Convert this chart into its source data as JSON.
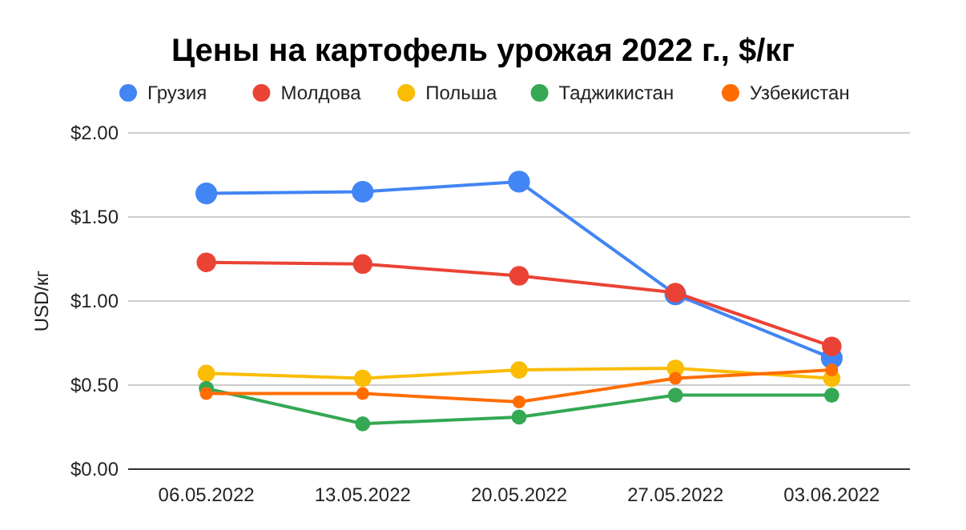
{
  "chart_data": {
    "type": "line",
    "title": "Цены на картофель урожая 2022 г., $/кг",
    "ylabel": "USD/кг",
    "categories": [
      "06.05.2022",
      "13.05.2022",
      "20.05.2022",
      "27.05.2022",
      "03.06.2022"
    ],
    "series": [
      {
        "name": "Грузия",
        "color": "#4285f4",
        "values": [
          1.64,
          1.65,
          1.71,
          1.04,
          0.66
        ]
      },
      {
        "name": "Молдова",
        "color": "#ea4335",
        "values": [
          1.23,
          1.22,
          1.15,
          1.05,
          0.73
        ]
      },
      {
        "name": "Польша",
        "color": "#fbbc04",
        "values": [
          0.57,
          0.54,
          0.59,
          0.6,
          0.54
        ]
      },
      {
        "name": "Таджикистан",
        "color": "#34a853",
        "values": [
          0.48,
          0.27,
          0.31,
          0.44,
          0.44
        ]
      },
      {
        "name": "Узбекистан",
        "color": "#ff6d01",
        "values": [
          0.45,
          0.45,
          0.4,
          0.54,
          0.59
        ]
      }
    ],
    "ylim": [
      0,
      2
    ],
    "yticks": [
      {
        "value": 0,
        "label": "$0.00"
      },
      {
        "value": 0.5,
        "label": "$0.50"
      },
      {
        "value": 1,
        "label": "$1.00"
      },
      {
        "value": 1.5,
        "label": "$1.50"
      },
      {
        "value": 2,
        "label": "$2.00"
      }
    ],
    "grid": "y",
    "legend": "top",
    "marker": "circle",
    "line_style": "solid"
  }
}
